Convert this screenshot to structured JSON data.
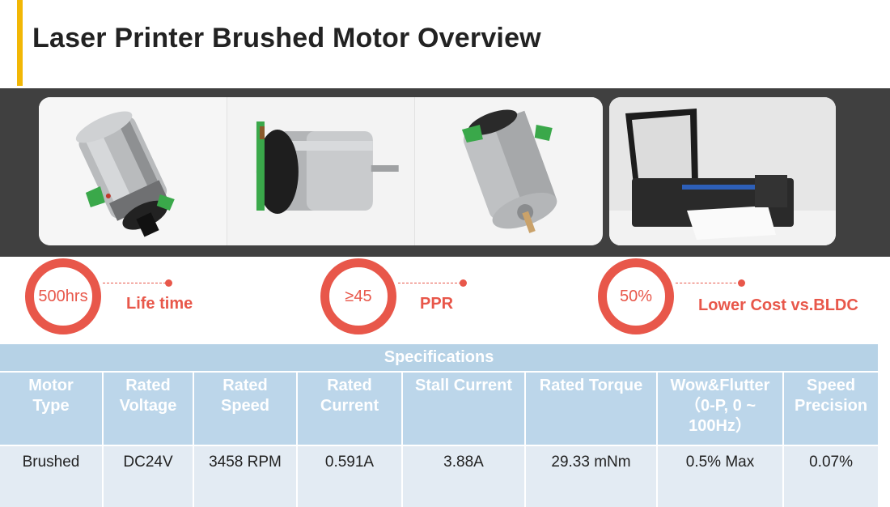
{
  "header": {
    "title": "Laser Printer Brushed Motor Overview"
  },
  "photos": [
    {
      "icon": "motor-gearbox-photo"
    },
    {
      "icon": "motor-side-photo"
    },
    {
      "icon": "motor-end-photo"
    },
    {
      "icon": "printer-photo"
    }
  ],
  "stats": [
    {
      "value": "500hrs",
      "label": "Life time"
    },
    {
      "value": "≥45",
      "label": "PPR"
    },
    {
      "value": "50%",
      "label": "Lower Cost vs.BLDC"
    }
  ],
  "specs": {
    "caption": "Specifications",
    "columns": [
      [
        "Motor",
        "Type"
      ],
      [
        "Rated",
        "Voltage"
      ],
      [
        "Rated",
        "Speed"
      ],
      [
        "Rated",
        "Current"
      ],
      [
        "Stall Current"
      ],
      [
        "Rated Torque"
      ],
      [
        "Wow&Flutter",
        "（0-P, 0 ~",
        "100Hz）"
      ],
      [
        "Speed",
        "Precision"
      ]
    ],
    "row": [
      "Brushed",
      "DC24V",
      "3458 RPM",
      "0.591A",
      "3.88A",
      "29.33 mNm",
      "0.5% Max",
      "0.07%"
    ]
  },
  "colors": {
    "accent_bar": "#f2b705",
    "stat_red": "#e8574a",
    "table_header": "#bcd6ea",
    "table_row": "#e3ebf3",
    "photo_band": "#404040"
  }
}
